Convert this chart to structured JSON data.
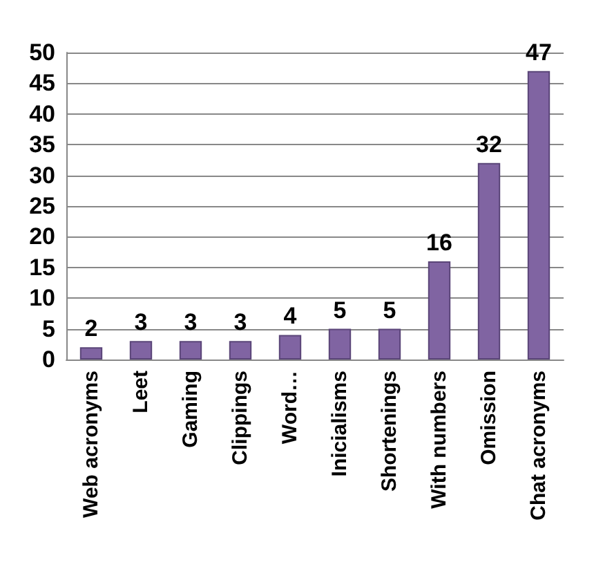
{
  "chart_data": {
    "type": "bar",
    "categories": [
      "Web acronyms",
      "Leet",
      "Gaming",
      "Clippings",
      "Word…",
      "Inicialisms",
      "Shortenings",
      "With numbers",
      "Omission",
      "Chat acronyms"
    ],
    "values": [
      2,
      3,
      3,
      3,
      4,
      5,
      5,
      16,
      32,
      47
    ],
    "color": "#8064a2",
    "ylim": [
      0,
      50
    ],
    "yticks": [
      0,
      5,
      10,
      15,
      20,
      25,
      30,
      35,
      40,
      45,
      50
    ],
    "grid": "y",
    "data_labels": true
  }
}
